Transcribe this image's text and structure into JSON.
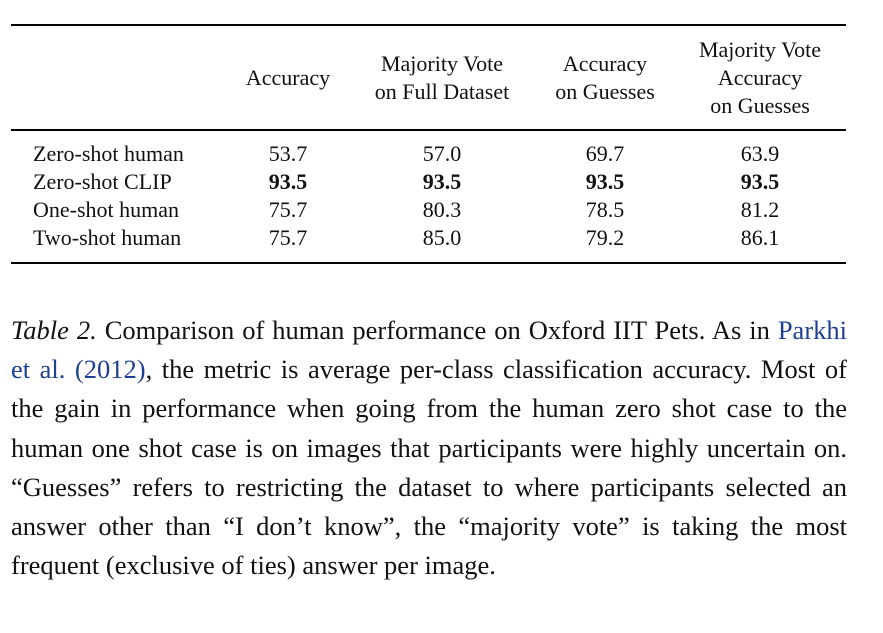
{
  "table": {
    "headers": [
      [
        "Accuracy"
      ],
      [
        "Majority Vote",
        "on Full Dataset"
      ],
      [
        "Accuracy",
        "on Guesses"
      ],
      [
        "Majority Vote",
        "Accuracy",
        "on Guesses"
      ]
    ],
    "rows": [
      {
        "label": "Zero-shot human",
        "values": [
          "53.7",
          "57.0",
          "69.7",
          "63.9"
        ],
        "bold": false
      },
      {
        "label": "Zero-shot CLIP",
        "values": [
          "93.5",
          "93.5",
          "93.5",
          "93.5"
        ],
        "bold": true
      },
      {
        "label": "One-shot human",
        "values": [
          "75.7",
          "80.3",
          "78.5",
          "81.2"
        ],
        "bold": false
      },
      {
        "label": "Two-shot human",
        "values": [
          "75.7",
          "85.0",
          "79.2",
          "86.1"
        ],
        "bold": false
      }
    ]
  },
  "caption": {
    "label": "Table 2.",
    "text_before": " Comparison of human performance on Oxford IIT Pets. As in ",
    "citation_author": "Parkhi et al.",
    "citation_year": "2012",
    "text_after": ", the metric is average per-class classification accuracy. Most of the gain in performance when going from the human zero shot case to the human one shot case is on images that participants were highly uncertain on. “Guesses” refers to restricting the dataset to where participants selected an answer other than “I don’t know”, the “majority vote” is taking the most frequent (exclusive of ties) answer per image."
  }
}
